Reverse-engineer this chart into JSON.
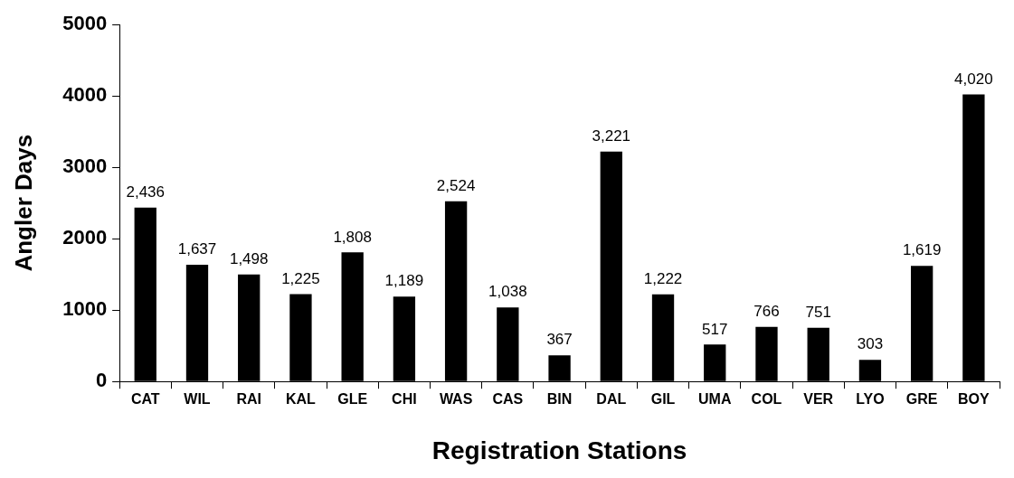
{
  "chart_data": {
    "type": "bar",
    "xlabel": "Registration Stations",
    "ylabel": "Angler Days",
    "categories": [
      "CAT",
      "WIL",
      "RAI",
      "KAL",
      "GLE",
      "CHI",
      "WAS",
      "CAS",
      "BIN",
      "DAL",
      "GIL",
      "UMA",
      "COL",
      "VER",
      "LYO",
      "GRE",
      "BOY"
    ],
    "values": [
      2436,
      1637,
      1498,
      1225,
      1808,
      1189,
      2524,
      1038,
      367,
      3221,
      1222,
      517,
      766,
      751,
      303,
      1619,
      4020
    ],
    "value_labels": [
      "2,436",
      "1,637",
      "1,498",
      "1,225",
      "1,808",
      "1,189",
      "2,524",
      "1,038",
      "367",
      "3,221",
      "1,222",
      "517",
      "766",
      "751",
      "303",
      "1,619",
      "4,020"
    ],
    "color": "#000000",
    "ylim": [
      0,
      5000
    ],
    "yticks": [
      0,
      1000,
      2000,
      3000,
      4000,
      5000
    ],
    "grid": false,
    "legend": false
  }
}
